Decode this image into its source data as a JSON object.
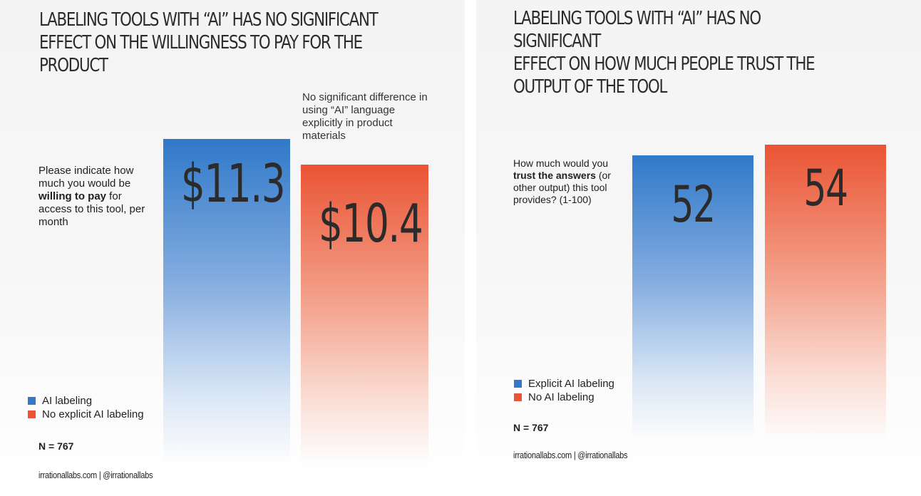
{
  "chart_data": [
    {
      "type": "bar",
      "title": "LABELING TOOLS WITH “AI” HAS NO SIGNIFICANT EFFECT ON THE WILLINGNESS TO PAY FOR THE PRODUCT",
      "title_lines": [
        "LABELING TOOLS WITH “AI” HAS NO SIGNIFICANT",
        "EFFECT ON THE WILLINGNESS TO PAY FOR THE",
        "PRODUCT"
      ],
      "question": {
        "part1": "Please indicate how much you would be ",
        "bold": "willing to pay",
        "part2": " for access to this tool, per month"
      },
      "annotation": "No significant difference in using “AI” language explicitly in product materials",
      "categories": [
        "AI labeling",
        "No explicit AI labeling"
      ],
      "values": [
        11.3,
        10.4
      ],
      "value_labels": [
        "$11.3",
        "$10.4"
      ],
      "colors": [
        "#3479c9",
        "#ea5535"
      ],
      "legend": [
        "AI labeling",
        "No explicit AI labeling"
      ],
      "n_label": "N = 767",
      "footer": "irrationallabs.com | @irrationallabs"
    },
    {
      "type": "bar",
      "title": "LABELING TOOLS WITH “AI” HAS NO SIGNIFICANT EFFECT ON HOW MUCH PEOPLE TRUST THE OUTPUT OF THE TOOL",
      "title_lines": [
        "LABELING TOOLS WITH “AI” HAS NO SIGNIFICANT",
        "EFFECT ON HOW MUCH PEOPLE TRUST THE",
        "OUTPUT OF THE TOOL"
      ],
      "question": {
        "part1": "How much would you ",
        "bold": "trust the answers",
        "part2": " (or other output) this tool provides? (1-100)"
      },
      "categories": [
        "Explicit AI labeling",
        "No AI labeling"
      ],
      "values": [
        52,
        54
      ],
      "value_labels": [
        "52",
        "54"
      ],
      "colors": [
        "#3479c9",
        "#ea5535"
      ],
      "legend": [
        "Explicit AI labeling",
        "No AI labeling"
      ],
      "n_label": "N = 767",
      "footer": "irrationallabs.com | @irrationallabs"
    }
  ]
}
